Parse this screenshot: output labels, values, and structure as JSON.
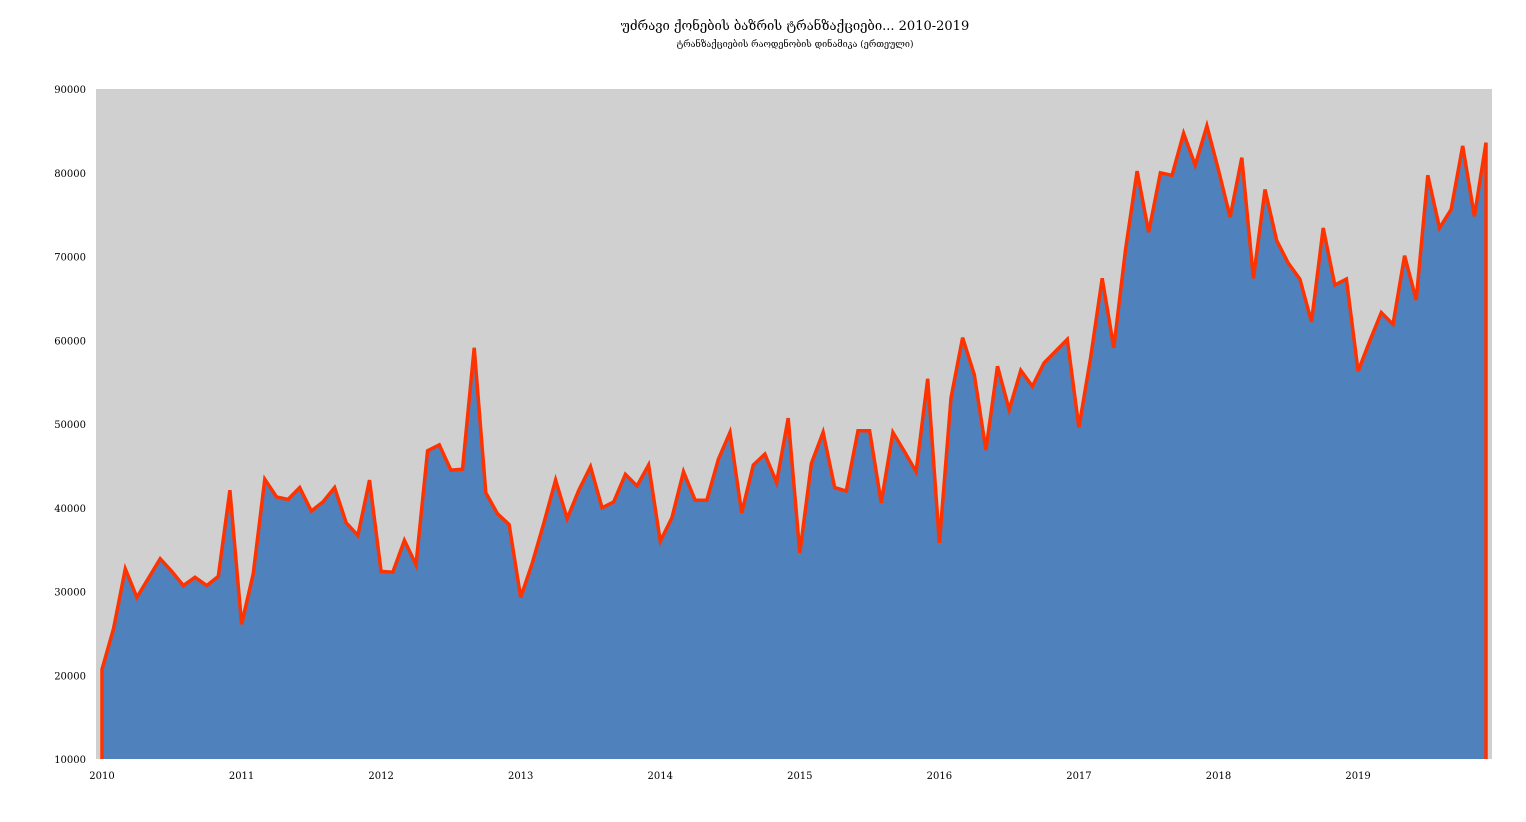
{
  "chart_data": {
    "type": "area",
    "title": "უძრავი ქონების ბაზრის ტრანზაქციები... 2010-2019",
    "subtitle": "ტრანზაქციების რაოდენობის დინამიკა (ერთეული)",
    "xlabel": "",
    "ylabel": "",
    "ylim": [
      10000,
      90000
    ],
    "yticks": [
      "10000",
      "20000",
      "30000",
      "40000",
      "50000",
      "60000",
      "70000",
      "80000",
      "90000"
    ],
    "xticks": [
      "2010",
      "2011",
      "2012",
      "2013",
      "2014",
      "2015",
      "2016",
      "2017",
      "2018",
      "2019"
    ],
    "x_start": "2010-01",
    "frequency": "monthly",
    "grid": false,
    "legend": "none",
    "colors": {
      "fill": "#4f81bd",
      "line": "#ff3300",
      "plot_bg": "#d0d0d0"
    },
    "series": [
      {
        "name": "transactions",
        "values": [
          20700,
          25600,
          32700,
          29300,
          31600,
          33900,
          32400,
          30700,
          31700,
          30700,
          31800,
          42100,
          26100,
          32100,
          43400,
          41300,
          41000,
          42400,
          39600,
          40700,
          42400,
          38200,
          36700,
          43300,
          32400,
          32300,
          36100,
          33200,
          46800,
          47500,
          44500,
          44600,
          59100,
          41800,
          39300,
          38000,
          29300,
          33400,
          38200,
          43300,
          38700,
          42100,
          44900,
          40000,
          40700,
          44000,
          42600,
          45100,
          36000,
          38800,
          44300,
          40900,
          40900,
          45800,
          49000,
          39400,
          45100,
          46400,
          43000,
          50700,
          34600,
          45300,
          49000,
          42400,
          42000,
          49200,
          49200,
          40600,
          49000,
          46700,
          44300,
          55400,
          35800,
          53100,
          60300,
          55900,
          46900,
          56900,
          51700,
          56400,
          54500,
          57300,
          58700,
          60100,
          49600,
          57900,
          67400,
          59100,
          70800,
          80200,
          72900,
          80000,
          79700,
          84700,
          80900,
          85600,
          80300,
          74700,
          81800,
          67400,
          78000,
          71900,
          69200,
          67300,
          62200,
          73400,
          66600,
          67300,
          56300,
          59900,
          63300,
          61900,
          70100,
          64800,
          79700,
          73400,
          75600,
          83200,
          74800,
          83600
        ]
      }
    ]
  }
}
